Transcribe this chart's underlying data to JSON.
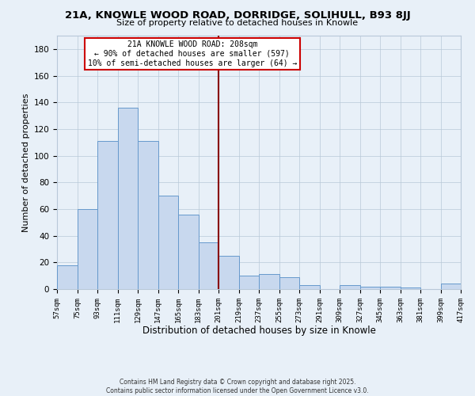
{
  "title": "21A, KNOWLE WOOD ROAD, DORRIDGE, SOLIHULL, B93 8JJ",
  "subtitle": "Size of property relative to detached houses in Knowle",
  "xlabel": "Distribution of detached houses by size in Knowle",
  "ylabel": "Number of detached properties",
  "background_color": "#e8f0f8",
  "bar_color": "#c8d8ee",
  "bar_edge_color": "#6699cc",
  "grid_color": "#b8c8d8",
  "vline_color": "#880000",
  "vline_x": 201,
  "annotation_title": "21A KNOWLE WOOD ROAD: 208sqm",
  "annotation_line1": "← 90% of detached houses are smaller (597)",
  "annotation_line2": "10% of semi-detached houses are larger (64) →",
  "footer1": "Contains HM Land Registry data © Crown copyright and database right 2025.",
  "footer2": "Contains public sector information licensed under the Open Government Licence v3.0.",
  "bins": [
    57,
    75,
    93,
    111,
    129,
    147,
    165,
    183,
    201,
    219,
    237,
    255,
    273,
    291,
    309,
    327,
    345,
    363,
    381,
    399,
    417
  ],
  "counts": [
    18,
    60,
    111,
    136,
    111,
    70,
    56,
    35,
    25,
    10,
    11,
    9,
    3,
    0,
    3,
    2,
    2,
    1,
    0,
    4
  ],
  "ylim": [
    0,
    190
  ],
  "yticks": [
    0,
    20,
    40,
    60,
    80,
    100,
    120,
    140,
    160,
    180
  ],
  "figsize": [
    6.0,
    5.0
  ],
  "dpi": 100
}
